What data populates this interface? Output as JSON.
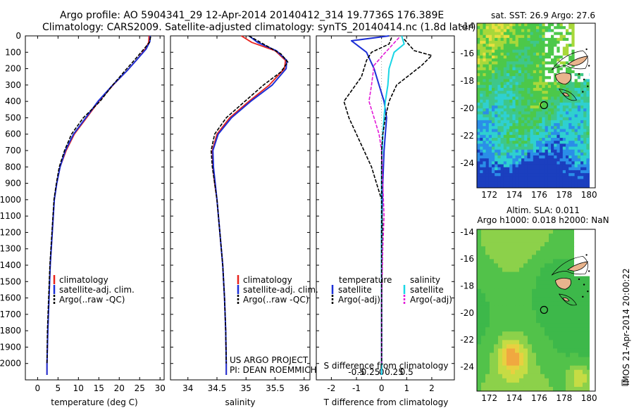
{
  "header": {
    "line1": "Argo profile: AO 5904341_29 12-Apr-2014 20140412_314 19.7736S 176.389E",
    "line2": "Climatology: CARS2009. Satellite-adjusted climatology: synTS_20140414.nc (1.8d later)"
  },
  "colors": {
    "climatology": "#e8231d",
    "satellite": "#1c2fd6",
    "argo": "#000000",
    "sal_satellite": "#19d6e6",
    "sal_argo": "#e21ad8"
  },
  "chart_data": [
    {
      "type": "line",
      "name": "temperature-profile",
      "xlabel": "temperature (deg C)",
      "ylabel": "",
      "xlim": [
        -3,
        31
      ],
      "ylim": [
        2100,
        0
      ],
      "xticks": [
        "0",
        "5",
        "10",
        "15",
        "20",
        "25",
        "30"
      ],
      "yticks": [
        "0",
        "100",
        "200",
        "300",
        "400",
        "500",
        "600",
        "700",
        "800",
        "900",
        "1000",
        "1100",
        "1200",
        "1300",
        "1400",
        "1500",
        "1600",
        "1700",
        "1800",
        "1900",
        "2000"
      ],
      "legend": [
        "climatology",
        "satellite-adj. clim.",
        "Argo(..raw -QC)"
      ],
      "series": [
        {
          "name": "climatology",
          "points": [
            [
              27.3,
              0
            ],
            [
              27.2,
              40
            ],
            [
              26.4,
              80
            ],
            [
              24.5,
              140
            ],
            [
              22,
              210
            ],
            [
              18.5,
              300
            ],
            [
              15,
              400
            ],
            [
              12,
              500
            ],
            [
              9,
              600
            ],
            [
              7,
              700
            ],
            [
              5.5,
              800
            ],
            [
              4.7,
              900
            ],
            [
              4.1,
              1000
            ],
            [
              3.6,
              1200
            ],
            [
              3.1,
              1400
            ],
            [
              2.8,
              1600
            ],
            [
              2.5,
              1800
            ],
            [
              2.3,
              2000
            ],
            [
              2.3,
              2070
            ]
          ]
        },
        {
          "name": "satellite",
          "points": [
            [
              27.6,
              0
            ],
            [
              27.5,
              35
            ],
            [
              26.6,
              80
            ],
            [
              24.5,
              140
            ],
            [
              22,
              210
            ],
            [
              18.4,
              300
            ],
            [
              14.8,
              400
            ],
            [
              11.8,
              500
            ],
            [
              8.8,
              600
            ],
            [
              6.8,
              700
            ],
            [
              5.5,
              800
            ],
            [
              4.7,
              900
            ],
            [
              4.1,
              1000
            ],
            [
              3.6,
              1200
            ],
            [
              3.1,
              1400
            ],
            [
              2.8,
              1600
            ],
            [
              2.5,
              1800
            ],
            [
              2.3,
              2000
            ],
            [
              2.3,
              2070
            ]
          ]
        },
        {
          "name": "argo",
          "points": [
            [
              27.7,
              5
            ],
            [
              27.4,
              40
            ],
            [
              25.7,
              90
            ],
            [
              24,
              140
            ],
            [
              21.5,
              210
            ],
            [
              18.4,
              300
            ],
            [
              15.3,
              400
            ],
            [
              11.2,
              500
            ],
            [
              8.3,
              600
            ],
            [
              6.6,
              700
            ],
            [
              5.3,
              800
            ],
            [
              4.6,
              900
            ],
            [
              4,
              1000
            ],
            [
              3.5,
              1200
            ],
            [
              3,
              1400
            ],
            [
              2.7,
              1600
            ],
            [
              2.4,
              1800
            ],
            [
              2.3,
              2000
            ]
          ]
        }
      ]
    },
    {
      "type": "line",
      "name": "salinity-profile",
      "xlabel": "salinity",
      "xlim": [
        33.7,
        36.1
      ],
      "ylim": [
        2100,
        0
      ],
      "xticks": [
        "34",
        "34.5",
        "35",
        "35.5",
        "36"
      ],
      "legend": [
        "climatology",
        "satellite-adj. clim.",
        "Argo(..raw -QC)"
      ],
      "series": [
        {
          "name": "climatology",
          "points": [
            [
              34.92,
              0
            ],
            [
              35.1,
              40
            ],
            [
              35.5,
              90
            ],
            [
              35.68,
              150
            ],
            [
              35.66,
              200
            ],
            [
              35.4,
              300
            ],
            [
              35.05,
              400
            ],
            [
              34.72,
              500
            ],
            [
              34.5,
              600
            ],
            [
              34.42,
              700
            ],
            [
              34.43,
              800
            ],
            [
              34.46,
              900
            ],
            [
              34.5,
              1000
            ],
            [
              34.55,
              1200
            ],
            [
              34.6,
              1400
            ],
            [
              34.63,
              1600
            ],
            [
              34.65,
              1800
            ],
            [
              34.66,
              2000
            ],
            [
              34.66,
              2070
            ]
          ]
        },
        {
          "name": "satellite",
          "points": [
            [
              35.05,
              0
            ],
            [
              35.2,
              40
            ],
            [
              35.52,
              90
            ],
            [
              35.7,
              150
            ],
            [
              35.69,
              200
            ],
            [
              35.45,
              300
            ],
            [
              35.08,
              400
            ],
            [
              34.75,
              500
            ],
            [
              34.52,
              600
            ],
            [
              34.43,
              700
            ],
            [
              34.44,
              800
            ],
            [
              34.47,
              900
            ],
            [
              34.5,
              1000
            ],
            [
              34.55,
              1200
            ],
            [
              34.6,
              1400
            ],
            [
              34.63,
              1600
            ],
            [
              34.65,
              1800
            ],
            [
              34.66,
              2000
            ],
            [
              34.66,
              2070
            ]
          ]
        },
        {
          "name": "argo",
          "points": [
            [
              35.05,
              0
            ],
            [
              35.3,
              50
            ],
            [
              35.6,
              110
            ],
            [
              35.72,
              160
            ],
            [
              35.6,
              220
            ],
            [
              35.3,
              300
            ],
            [
              34.98,
              400
            ],
            [
              34.66,
              500
            ],
            [
              34.46,
              600
            ],
            [
              34.4,
              700
            ],
            [
              34.42,
              800
            ],
            [
              34.46,
              900
            ],
            [
              34.5,
              1000
            ],
            [
              34.55,
              1200
            ],
            [
              34.6,
              1400
            ],
            [
              34.63,
              1600
            ],
            [
              34.65,
              1800
            ],
            [
              34.66,
              2000
            ]
          ]
        }
      ]
    },
    {
      "type": "line",
      "name": "difference-profile",
      "xlabel": "T difference from climatology",
      "xlabel_top": "S difference from climatology",
      "xlim": [
        -2.6,
        2.9
      ],
      "ylim": [
        2100,
        0
      ],
      "xticks": [
        "-2",
        "-1",
        "0",
        "1",
        "2"
      ],
      "xticks_salinity": [
        "-0.5",
        "-0.25",
        "0",
        "0.25",
        "0.5"
      ],
      "legend_temperature_title": "temperature",
      "legend_salinity_title": "salinity",
      "legend": [
        "satellite",
        "Argo(-adj)",
        "satellite",
        "Argo(-adj)"
      ],
      "series": [
        {
          "name": "temperature satellite",
          "points": [
            [
              0.3,
              0
            ],
            [
              -1.2,
              30
            ],
            [
              -0.6,
              100
            ],
            [
              -0.3,
              200
            ],
            [
              -0.1,
              300
            ],
            [
              0.1,
              400
            ],
            [
              0.2,
              500
            ],
            [
              0.15,
              600
            ],
            [
              0.1,
              700
            ],
            [
              0.05,
              900
            ],
            [
              0,
              1200
            ],
            [
              0,
              1600
            ],
            [
              0,
              2000
            ],
            [
              0,
              2070
            ]
          ]
        },
        {
          "name": "temperature argo",
          "points": [
            [
              0.4,
              10
            ],
            [
              0.3,
              50
            ],
            [
              -0.4,
              100
            ],
            [
              -0.6,
              150
            ],
            [
              -0.8,
              250
            ],
            [
              -1.5,
              400
            ],
            [
              -1.3,
              500
            ],
            [
              -1.0,
              600
            ],
            [
              -0.7,
              700
            ],
            [
              -0.4,
              800
            ],
            [
              -0.2,
              900
            ],
            [
              0,
              1000
            ],
            [
              0.05,
              1200
            ],
            [
              0,
              1600
            ],
            [
              0,
              2000
            ]
          ]
        },
        {
          "name": "salinity satellite",
          "points": [
            [
              0.8,
              0
            ],
            [
              0.9,
              50
            ],
            [
              0.5,
              100
            ],
            [
              0.3,
              200
            ],
            [
              0.25,
              300
            ],
            [
              0.15,
              400
            ],
            [
              0.1,
              500
            ],
            [
              0.05,
              600
            ],
            [
              0,
              800
            ],
            [
              0,
              1000
            ],
            [
              0,
              1400
            ],
            [
              0,
              2000
            ],
            [
              0,
              2070
            ]
          ]
        },
        {
          "name": "salinity argo",
          "points": [
            [
              0.7,
              10
            ],
            [
              0.4,
              60
            ],
            [
              0.1,
              110
            ],
            [
              -0.3,
              180
            ],
            [
              -0.4,
              300
            ],
            [
              -0.5,
              400
            ],
            [
              -0.3,
              500
            ],
            [
              -0.1,
              600
            ],
            [
              0,
              700
            ],
            [
              0.05,
              900
            ],
            [
              0.1,
              1100
            ],
            [
              0.05,
              1300
            ],
            [
              0,
              1600
            ],
            [
              0,
              2000
            ]
          ]
        },
        {
          "name": "salinity argo outer",
          "points": [
            [
              0.9,
              20
            ],
            [
              1.3,
              90
            ],
            [
              2.0,
              120
            ],
            [
              1.6,
              180
            ],
            [
              1.1,
              240
            ],
            [
              0.6,
              300
            ],
            [
              0.3,
              400
            ],
            [
              0.15,
              500
            ],
            [
              0.05,
              600
            ],
            [
              0,
              700
            ],
            [
              0,
              900
            ],
            [
              0,
              2000
            ]
          ]
        }
      ]
    },
    {
      "type": "heatmap",
      "name": "sst-map",
      "title": "sat. SST: 26.9 Argo: 27.6",
      "xlim": [
        171,
        180.5
      ],
      "ylim": [
        -25.8,
        -13.8
      ],
      "xticks": [
        "172",
        "174",
        "176",
        "178",
        "180"
      ],
      "yticks": [
        "-14",
        "-16",
        "-18",
        "-20",
        "-22",
        "-24"
      ],
      "marker": {
        "lon": 176.389,
        "lat": -19.7736
      }
    },
    {
      "type": "heatmap",
      "name": "sla-map",
      "title": "Altim. SLA: 0.011",
      "subtitle": "Argo h1000: 0.018 h2000: NaN",
      "xlim": [
        171,
        180.5
      ],
      "ylim": [
        -25.8,
        -13.8
      ],
      "xticks": [
        "172",
        "174",
        "176",
        "178",
        "180"
      ],
      "yticks": [
        "-14",
        "-16",
        "-18",
        "-20",
        "-22",
        "-24"
      ],
      "marker": {
        "lon": 176.389,
        "lat": -19.7736
      }
    }
  ],
  "credits": {
    "line1": "US ARGO PROJECT",
    "line2": "PI: DEAN ROEMMICH"
  },
  "side_stamp": "IMOS 21-Apr-2014 20:00:22"
}
